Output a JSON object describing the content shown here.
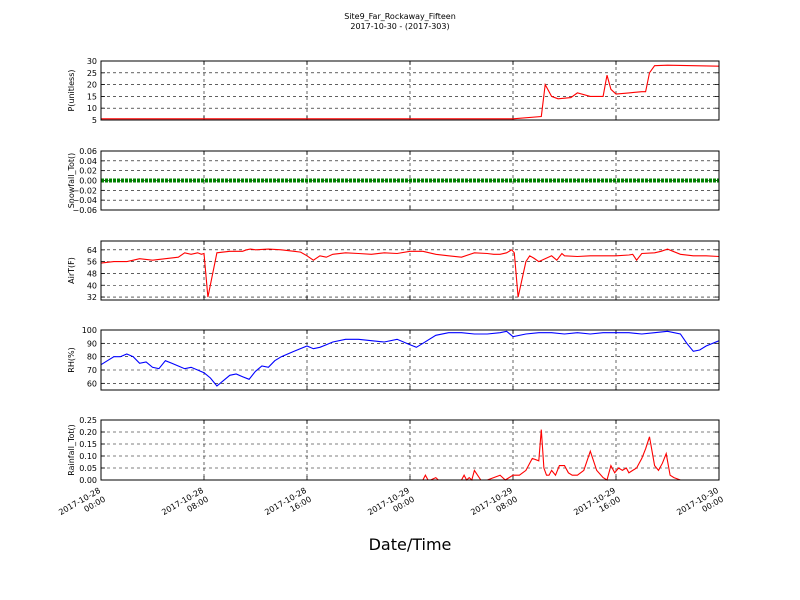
{
  "header": {
    "title": "Site9_Far_Rockaway_Fifteen",
    "subtitle": "2017-10-30 - (2017-303)"
  },
  "chart_data": {
    "type": "line",
    "title": "Site9_Far_Rockaway_Fifteen",
    "subtitle": "2017-10-30 - (2017-303)",
    "xlabel": "Date/Time",
    "x_ticks": [
      {
        "t": 0,
        "label": [
          "2017-10-28",
          "00:00"
        ]
      },
      {
        "t": 8,
        "label": [
          "2017-10-28",
          "08:00"
        ]
      },
      {
        "t": 16,
        "label": [
          "2017-10-28",
          "16:00"
        ]
      },
      {
        "t": 24,
        "label": [
          "2017-10-29",
          "00:00"
        ]
      },
      {
        "t": 32,
        "label": [
          "2017-10-29",
          "08:00"
        ]
      },
      {
        "t": 40,
        "label": [
          "2017-10-29",
          "16:00"
        ]
      },
      {
        "t": 48,
        "label": [
          "2017-10-30",
          "00:00"
        ]
      }
    ],
    "xlim": [
      0,
      48
    ],
    "grid": true,
    "panels": [
      {
        "ylabel": "P(unitless)",
        "ylim": [
          5,
          30
        ],
        "yticks": [
          5,
          10,
          15,
          20,
          25,
          30
        ],
        "ytick_labels": [
          "5",
          "10",
          "15",
          "20",
          "25",
          "30"
        ],
        "color": "#ff0000",
        "x": [
          0,
          32,
          34.2,
          34.5,
          35,
          35.5,
          36.5,
          37,
          38,
          39,
          39.3,
          39.6,
          40,
          41,
          42,
          42.3,
          42.6,
          43,
          44,
          46,
          48
        ],
        "y": [
          5.5,
          5.5,
          6.5,
          20,
          15,
          14,
          14.5,
          16.5,
          15,
          15,
          24,
          18,
          16,
          16.5,
          17,
          17,
          25,
          28,
          28.2,
          28,
          27.8
        ]
      },
      {
        "ylabel": "Snowfall_Tot()",
        "ylim": [
          -0.06,
          0.06
        ],
        "yticks": [
          -0.06,
          -0.04,
          -0.02,
          0,
          0.02,
          0.04,
          0.06
        ],
        "ytick_labels": [
          "−0.06",
          "−0.04",
          "−0.02",
          "0.00",
          "0.02",
          "0.04",
          "0.06"
        ],
        "color": "#008000",
        "x": [
          0,
          48
        ],
        "y": [
          0,
          0
        ]
      },
      {
        "ylabel": "AirT(F)",
        "ylim": [
          30,
          70
        ],
        "yticks": [
          32,
          40,
          48,
          56,
          64
        ],
        "ytick_labels": [
          "32",
          "40",
          "48",
          "56",
          "64"
        ],
        "color": "#ff0000",
        "x": [
          0,
          1,
          2,
          2.5,
          3,
          4,
          4.5,
          5,
          6,
          6.5,
          7,
          7.5,
          7.8,
          8,
          8.3,
          9,
          10,
          11,
          11.3,
          11.6,
          12,
          13,
          14,
          14.5,
          15,
          15.5,
          16,
          16.5,
          17,
          17.5,
          18,
          19,
          20,
          21,
          22,
          23,
          24,
          25,
          26,
          27,
          28,
          29,
          30,
          30.5,
          31,
          31.5,
          31.9,
          32.1,
          32.4,
          33,
          33.3,
          33.6,
          34,
          35,
          35.4,
          35.8,
          36,
          37,
          38,
          40,
          41,
          41.3,
          41.6,
          42,
          43,
          43.5,
          44,
          45,
          46,
          47,
          48
        ],
        "y": [
          55,
          56,
          56,
          57,
          58,
          57,
          57.5,
          58,
          59,
          62,
          61,
          62,
          61,
          61.5,
          32,
          62,
          63,
          63,
          64,
          64.5,
          64,
          64.5,
          64,
          63.5,
          63,
          62.5,
          60,
          57,
          60,
          59,
          61,
          62,
          61.5,
          61,
          62,
          61.5,
          63,
          63,
          61,
          60,
          59,
          62,
          61.5,
          61,
          61,
          62,
          64,
          62,
          32,
          56,
          60,
          58.5,
          56,
          60,
          57,
          61.5,
          60,
          59.5,
          60,
          60,
          60.5,
          61,
          57,
          61.5,
          62,
          63,
          64.5,
          61,
          60,
          60,
          59.5
        ]
      },
      {
        "ylabel": "RH(%)",
        "ylim": [
          55,
          100
        ],
        "yticks": [
          60,
          70,
          80,
          90,
          100
        ],
        "ytick_labels": [
          "60",
          "70",
          "80",
          "90",
          "100"
        ],
        "color": "#0000ff",
        "x": [
          0,
          0.5,
          1,
          1.5,
          2,
          2.5,
          3,
          3.5,
          4,
          4.5,
          5,
          5.5,
          6,
          6.5,
          7,
          7.5,
          8,
          8.5,
          9,
          9.5,
          10,
          10.5,
          11,
          11.5,
          12,
          12.5,
          13,
          13.5,
          14,
          15,
          16,
          16.5,
          17,
          17.5,
          18,
          19,
          20,
          21,
          22,
          23,
          24,
          24.5,
          25,
          26,
          27,
          28,
          29,
          30,
          31,
          31.5,
          32,
          33,
          34,
          35,
          36,
          37,
          38,
          39,
          40,
          41,
          42,
          43,
          44,
          45,
          45.5,
          46,
          46.5,
          47,
          48
        ],
        "y": [
          74,
          77,
          80,
          80,
          82,
          80,
          75,
          76,
          72,
          71,
          77,
          75,
          73,
          71,
          72,
          70,
          68,
          64,
          58,
          62,
          66,
          67,
          65,
          63,
          69,
          73,
          72,
          77,
          80,
          84,
          88,
          86,
          87,
          89,
          91,
          93,
          93,
          92,
          91,
          93,
          89,
          87,
          90,
          96,
          98,
          98,
          97,
          97,
          98,
          99,
          95,
          97,
          98,
          98,
          97,
          98,
          97,
          98,
          98,
          98,
          97,
          98,
          99,
          97,
          90,
          84,
          85,
          88,
          92
        ]
      },
      {
        "ylabel": "Rainfall_Tot()",
        "ylim": [
          0,
          0.25
        ],
        "yticks": [
          0,
          0.05,
          0.1,
          0.15,
          0.2,
          0.25
        ],
        "ytick_labels": [
          "0.00",
          "0.05",
          "0.10",
          "0.15",
          "0.20",
          "0.25"
        ],
        "color": "#ff0000",
        "x": [
          0,
          25,
          25.2,
          25.4,
          25.6,
          26,
          26.2,
          26.4,
          28,
          28.2,
          28.4,
          28.6,
          28.8,
          29,
          29.5,
          30,
          30.5,
          31,
          31.2,
          31.4,
          32,
          32.5,
          33,
          33.5,
          34,
          34.2,
          34.4,
          34.6,
          34.8,
          35,
          35.3,
          35.6,
          36,
          36.3,
          36.6,
          37,
          37.5,
          38,
          38.5,
          39,
          39.3,
          39.6,
          39.9,
          40.2,
          40.5,
          40.8,
          41,
          41.3,
          41.6,
          42,
          42.3,
          42.6,
          43,
          43.3,
          43.6,
          43.9,
          44.2,
          44.5,
          45,
          48
        ],
        "y": [
          0,
          0,
          0.02,
          0,
          0,
          0.01,
          0,
          0,
          0,
          0.02,
          0,
          0.01,
          0,
          0.04,
          0,
          0,
          0.01,
          0.02,
          0.01,
          0,
          0.02,
          0.02,
          0.04,
          0.09,
          0.08,
          0.21,
          0.05,
          0.02,
          0.02,
          0.04,
          0.02,
          0.06,
          0.06,
          0.03,
          0.02,
          0.02,
          0.04,
          0.12,
          0.04,
          0.01,
          0,
          0.06,
          0.03,
          0.05,
          0.04,
          0.05,
          0.03,
          0.04,
          0.05,
          0.09,
          0.13,
          0.18,
          0.06,
          0.04,
          0.07,
          0.11,
          0.02,
          0.01,
          0,
          0
        ]
      }
    ]
  }
}
